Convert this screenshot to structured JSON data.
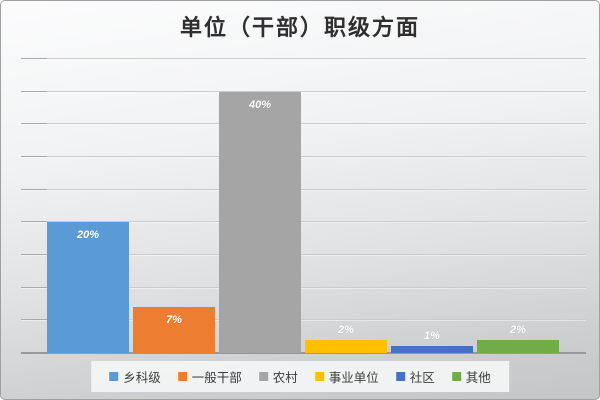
{
  "title": "单位（干部）职级方面",
  "chart_data": {
    "type": "bar",
    "title": "单位（干部）职级方面",
    "categories": [
      ""
    ],
    "series": [
      {
        "name": "乡科级",
        "value": 20,
        "label": "20%",
        "color": "#5B9BD5"
      },
      {
        "name": "一般干部",
        "value": 7,
        "label": "7%",
        "color": "#ED7D31"
      },
      {
        "name": "农村",
        "value": 40,
        "label": "40%",
        "color": "#A5A5A5"
      },
      {
        "name": "事业单位",
        "value": 2,
        "label": "2%",
        "color": "#FFC000"
      },
      {
        "name": "社区",
        "value": 1,
        "label": "1%",
        "color": "#4472C4"
      },
      {
        "name": "其他",
        "value": 2,
        "label": "2%",
        "color": "#70AD47"
      }
    ],
    "xlabel": "",
    "ylabel": "",
    "ylim": [
      0,
      45
    ],
    "grid_step": 5,
    "grid": true,
    "y_axis_labels_visible": false,
    "data_labels": true,
    "data_label_color": "#FFFFFF",
    "legend_position": "bottom"
  },
  "colors": {
    "background_top": "#FCFCFD",
    "background_bottom": "#C3C5C7",
    "gridline": "#C9CBCC",
    "axis_line": "#97999B",
    "title_text": "#2F2F2F",
    "legend_text": "#3C3C3C",
    "legend_background": "#F4F5F5",
    "border": "#A0A0A0"
  }
}
